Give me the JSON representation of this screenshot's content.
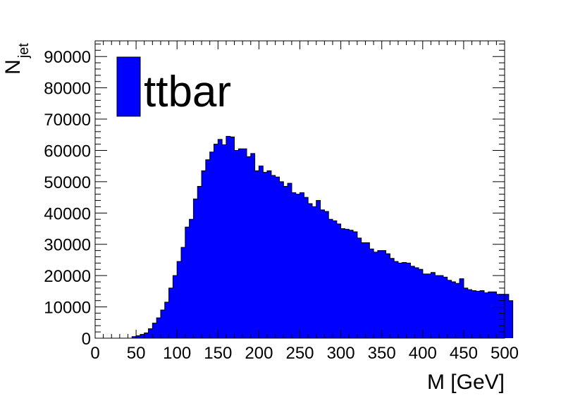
{
  "chart_data": {
    "type": "bar",
    "histogram": true,
    "xlabel": "M [GeV]",
    "ylabel": "N",
    "ylabel_subscript": "jet",
    "xlim": [
      0,
      500
    ],
    "ylim": [
      0,
      95000
    ],
    "bin_width": 5,
    "x_ticks": [
      0,
      50,
      100,
      150,
      200,
      250,
      300,
      350,
      400,
      450,
      500
    ],
    "y_ticks": [
      0,
      10000,
      20000,
      30000,
      40000,
      50000,
      60000,
      70000,
      80000,
      90000
    ],
    "grid": false,
    "legend_position": "top-left",
    "colors": {
      "fill": "#0000ff",
      "stroke": "#000000"
    },
    "series": [
      {
        "name": "ttbar",
        "values": [
          0,
          0,
          0,
          0,
          0,
          0,
          0,
          0,
          0,
          500,
          800,
          1200,
          1700,
          3000,
          4800,
          6500,
          9000,
          11500,
          16000,
          20000,
          24500,
          29000,
          35500,
          38000,
          44500,
          48500,
          53500,
          57000,
          59500,
          62000,
          63500,
          61800,
          64500,
          64300,
          60000,
          60500,
          60500,
          58000,
          59000,
          53500,
          55000,
          53000,
          53500,
          52000,
          51500,
          50000,
          48500,
          49500,
          46500,
          46000,
          46500,
          45000,
          43000,
          42000,
          44000,
          41000,
          40500,
          38000,
          37500,
          36500,
          35000,
          34800,
          34500,
          34000,
          32000,
          30500,
          30500,
          28500,
          27500,
          28000,
          28000,
          27000,
          25500,
          24500,
          24000,
          24200,
          24000,
          23000,
          22500,
          22000,
          20500,
          20500,
          21000,
          20000,
          20000,
          19500,
          18500,
          18000,
          17500,
          19000,
          16000,
          15500,
          15200,
          15000,
          15200,
          14500,
          14800,
          14800,
          14000,
          14000,
          14000,
          12000
        ]
      }
    ]
  }
}
